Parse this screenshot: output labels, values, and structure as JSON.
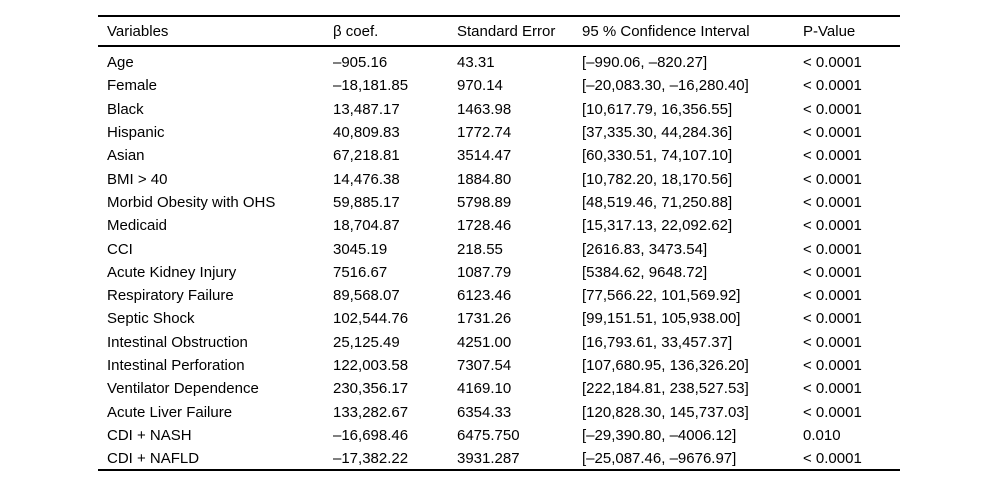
{
  "table": {
    "columns": [
      "Variables",
      "β coef.",
      "Standard Error",
      "95 % Confidence Interval",
      "P-Value"
    ],
    "rows": [
      {
        "variable": "Age",
        "beta": "–905.16",
        "se": "43.31",
        "ci": "[–990.06, –820.27]",
        "p": "< 0.0001"
      },
      {
        "variable": "Female",
        "beta": "–18,181.85",
        "se": "970.14",
        "ci": "[–20,083.30, –16,280.40]",
        "p": "< 0.0001"
      },
      {
        "variable": "Black",
        "beta": "13,487.17",
        "se": "1463.98",
        "ci": "[10,617.79, 16,356.55]",
        "p": "< 0.0001"
      },
      {
        "variable": "Hispanic",
        "beta": "40,809.83",
        "se": "1772.74",
        "ci": "[37,335.30, 44,284.36]",
        "p": "< 0.0001"
      },
      {
        "variable": "Asian",
        "beta": "67,218.81",
        "se": "3514.47",
        "ci": "[60,330.51, 74,107.10]",
        "p": "< 0.0001"
      },
      {
        "variable": "BMI > 40",
        "beta": "14,476.38",
        "se": "1884.80",
        "ci": "[10,782.20, 18,170.56]",
        "p": "< 0.0001"
      },
      {
        "variable": "Morbid Obesity with OHS",
        "beta": "59,885.17",
        "se": "5798.89",
        "ci": "[48,519.46, 71,250.88]",
        "p": "< 0.0001"
      },
      {
        "variable": "Medicaid",
        "beta": "18,704.87",
        "se": "1728.46",
        "ci": "[15,317.13, 22,092.62]",
        "p": "< 0.0001"
      },
      {
        "variable": "CCI",
        "beta": "3045.19",
        "se": "218.55",
        "ci": "[2616.83, 3473.54]",
        "p": "< 0.0001"
      },
      {
        "variable": "Acute Kidney Injury",
        "beta": "7516.67",
        "se": "1087.79",
        "ci": "[5384.62, 9648.72]",
        "p": "< 0.0001"
      },
      {
        "variable": "Respiratory Failure",
        "beta": "89,568.07",
        "se": "6123.46",
        "ci": "[77,566.22, 101,569.92]",
        "p": "< 0.0001"
      },
      {
        "variable": "Septic Shock",
        "beta": "102,544.76",
        "se": "1731.26",
        "ci": "[99,151.51, 105,938.00]",
        "p": "< 0.0001"
      },
      {
        "variable": "Intestinal Obstruction",
        "beta": "25,125.49",
        "se": "4251.00",
        "ci": "[16,793.61, 33,457.37]",
        "p": "< 0.0001"
      },
      {
        "variable": "Intestinal Perforation",
        "beta": "122,003.58",
        "se": "7307.54",
        "ci": "[107,680.95, 136,326.20]",
        "p": "< 0.0001"
      },
      {
        "variable": "Ventilator Dependence",
        "beta": "230,356.17",
        "se": "4169.10",
        "ci": "[222,184.81, 238,527.53]",
        "p": "< 0.0001"
      },
      {
        "variable": "Acute Liver Failure",
        "beta": "133,282.67",
        "se": "6354.33",
        "ci": "[120,828.30, 145,737.03]",
        "p": "< 0.0001"
      },
      {
        "variable": "CDI + NASH",
        "beta": "–16,698.46",
        "se": "6475.750",
        "ci": "[–29,390.80, –4006.12]",
        "p": "0.010"
      },
      {
        "variable": "CDI + NAFLD",
        "beta": "–17,382.22",
        "se": "3931.287",
        "ci": "[–25,087.46, –9676.97]",
        "p": "< 0.0001"
      }
    ]
  }
}
